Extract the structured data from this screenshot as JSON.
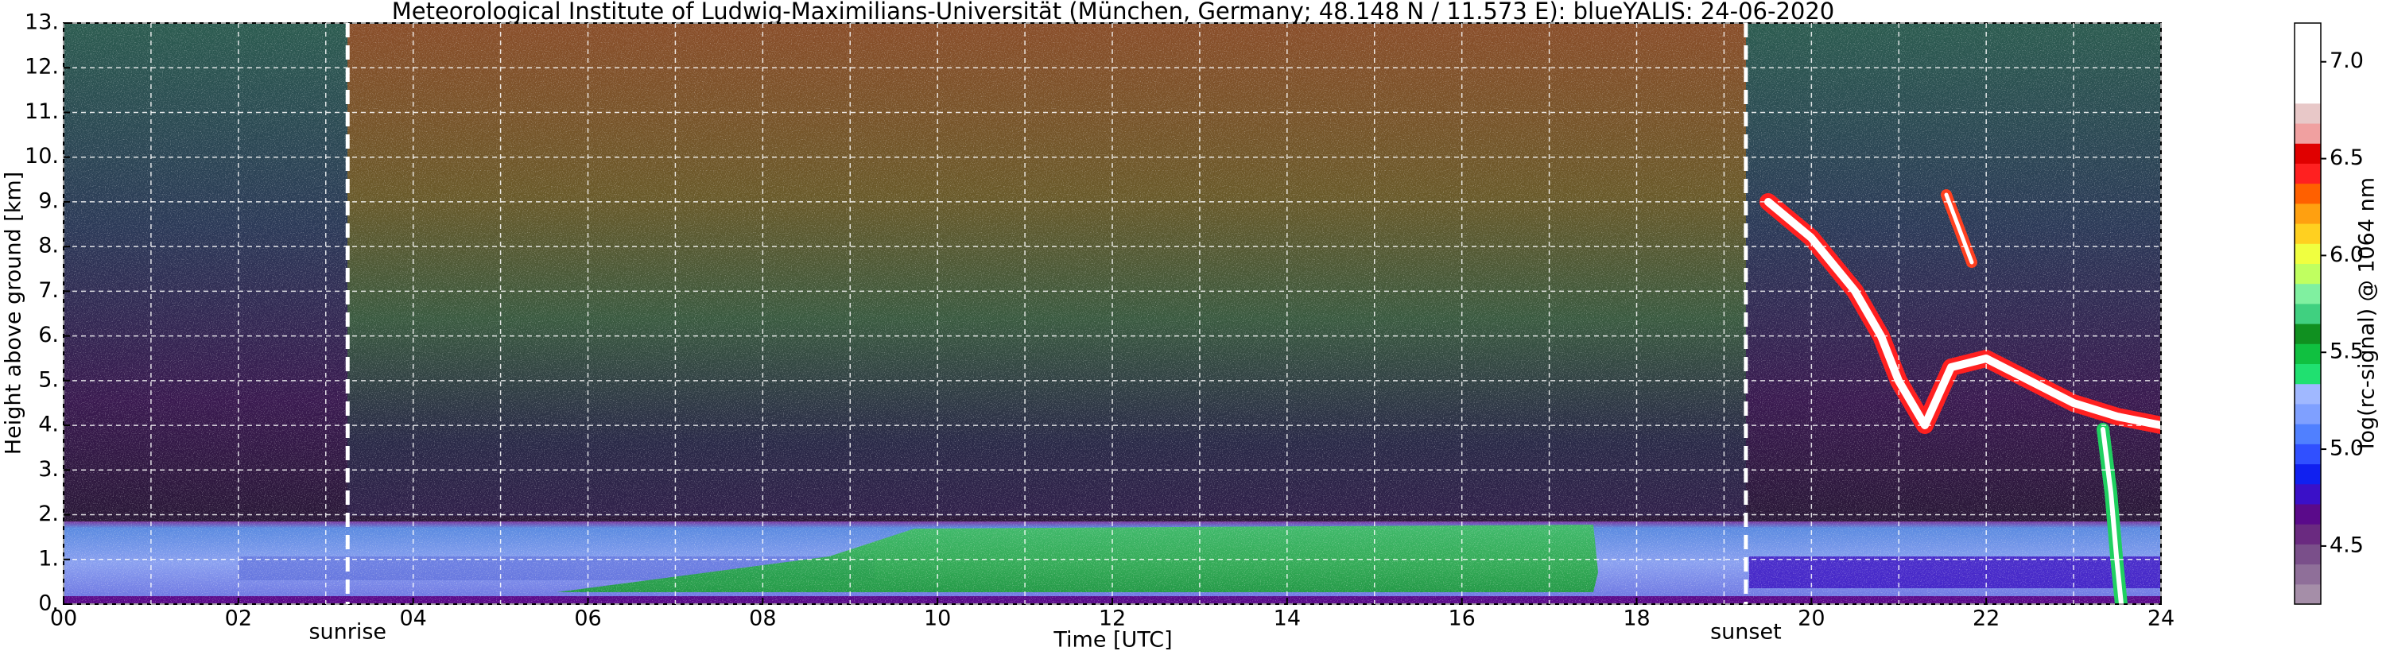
{
  "chart_data": {
    "type": "heatmap",
    "title": "Meteorological Institute of Ludwig-Maximilians-Universität (München, Germany; 48.148 N / 11.573 E):    blueYALIS: 24-06-2020",
    "xlabel": "Time [UTC]",
    "ylabel": "Height above ground [km]",
    "xlim": [
      0,
      24
    ],
    "ylim": [
      0,
      13
    ],
    "xticks": [
      {
        "value": 0,
        "label": "00"
      },
      {
        "value": 2,
        "label": "02"
      },
      {
        "value": 4,
        "label": "04"
      },
      {
        "value": 6,
        "label": "06"
      },
      {
        "value": 8,
        "label": "08"
      },
      {
        "value": 10,
        "label": "10"
      },
      {
        "value": 12,
        "label": "12"
      },
      {
        "value": 14,
        "label": "14"
      },
      {
        "value": 16,
        "label": "16"
      },
      {
        "value": 18,
        "label": "18"
      },
      {
        "value": 20,
        "label": "20"
      },
      {
        "value": 22,
        "label": "22"
      },
      {
        "value": 24,
        "label": "24"
      }
    ],
    "xminor_ticks": [
      1,
      3,
      5,
      7,
      9,
      11,
      13,
      15,
      17,
      19,
      21,
      23
    ],
    "yticks": [
      {
        "value": 0,
        "label": "0."
      },
      {
        "value": 1,
        "label": "1."
      },
      {
        "value": 2,
        "label": "2."
      },
      {
        "value": 3,
        "label": "3."
      },
      {
        "value": 4,
        "label": "4."
      },
      {
        "value": 5,
        "label": "5."
      },
      {
        "value": 6,
        "label": "6."
      },
      {
        "value": 7,
        "label": "7."
      },
      {
        "value": 8,
        "label": "8."
      },
      {
        "value": 9,
        "label": "9."
      },
      {
        "value": 10,
        "label": "10."
      },
      {
        "value": 11,
        "label": "11."
      },
      {
        "value": 12,
        "label": "12."
      },
      {
        "value": 13,
        "label": "13."
      }
    ],
    "grid": true,
    "annotations": [
      {
        "x": 3.25,
        "label": "sunrise"
      },
      {
        "x": 19.25,
        "label": "sunset"
      }
    ],
    "colorbar": {
      "label": "log(rc-signal) @ 1064 nm",
      "clim": [
        4.2,
        7.2
      ],
      "ticks": [
        4.5,
        {
          "value": 5.0,
          "label": "5.0"
        },
        5.5,
        {
          "value": 6.0,
          "label": "6.0"
        },
        6.5,
        {
          "value": 7.0,
          "label": "7.0"
        }
      ],
      "colors": [
        "#a58ea8",
        "#8f6f99",
        "#7a4f8a",
        "#6a2a80",
        "#5a0a8a",
        "#3a10c8",
        "#1020f0",
        "#3050ff",
        "#5080ff",
        "#7fa0ff",
        "#a0b8ff",
        "#20e070",
        "#10c040",
        "#109020",
        "#40d080",
        "#80f0a0",
        "#c0ff60",
        "#f0ff40",
        "#ffd020",
        "#ffa010",
        "#ff6000",
        "#ff2020",
        "#e00000",
        "#f0a0a0",
        "#e8c8c8",
        "#ffffff",
        "#ffffff",
        "#ffffff",
        "#ffffff"
      ]
    }
  }
}
